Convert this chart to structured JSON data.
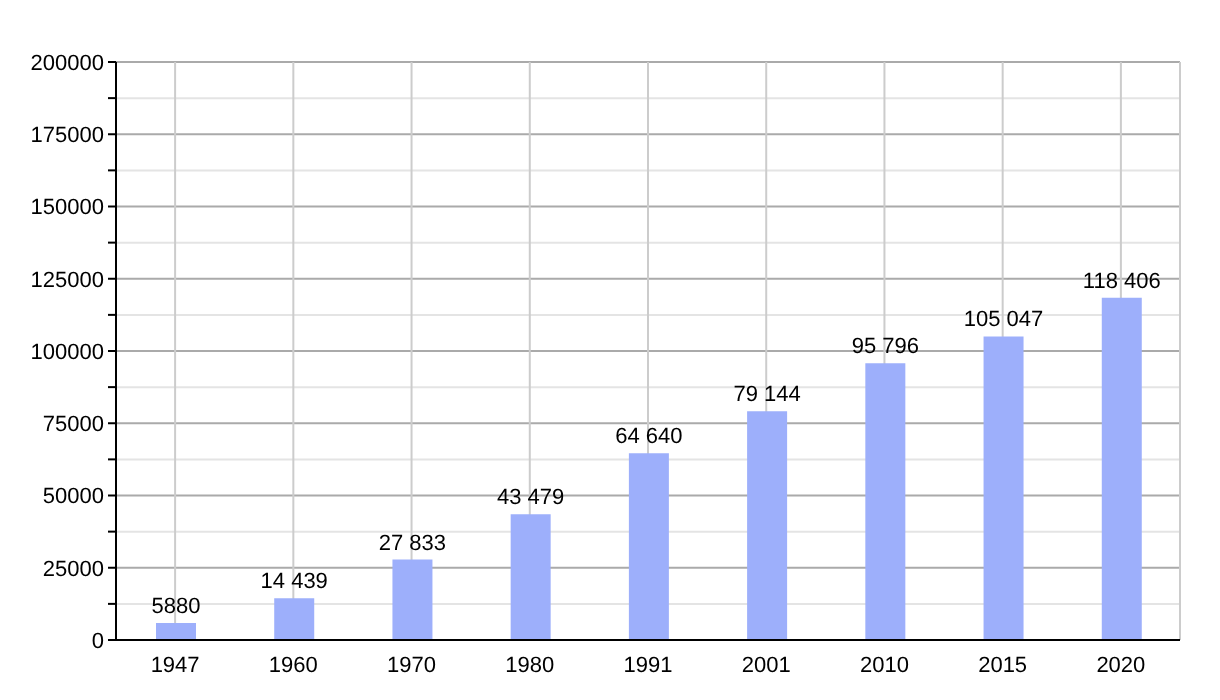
{
  "chart_data": {
    "type": "bar",
    "categories": [
      "1947",
      "1960",
      "1970",
      "1980",
      "1991",
      "2001",
      "2010",
      "2015",
      "2020"
    ],
    "values": [
      5880,
      14439,
      27833,
      43479,
      64640,
      79144,
      95796,
      105047,
      118406
    ],
    "value_labels": [
      "5880",
      "14 439",
      "27 833",
      "43 479",
      "64 640",
      "79 144",
      "95 796",
      "105 047",
      "118 406"
    ],
    "color": "#9daffb",
    "ylim": [
      0,
      200000
    ],
    "yticks": [
      0,
      {
        "value": 12500,
        "label": null
      },
      25000,
      {
        "value": 37500,
        "label": null
      },
      50000,
      {
        "value": 62500,
        "label": null
      },
      75000,
      {
        "value": 87500,
        "label": null
      },
      100000,
      {
        "value": 112500,
        "label": null
      },
      125000,
      {
        "value": 137500,
        "label": null
      },
      150000,
      {
        "value": 162500,
        "label": null
      },
      175000,
      {
        "value": 187500,
        "label": null
      },
      200000
    ],
    "grid": true
  }
}
